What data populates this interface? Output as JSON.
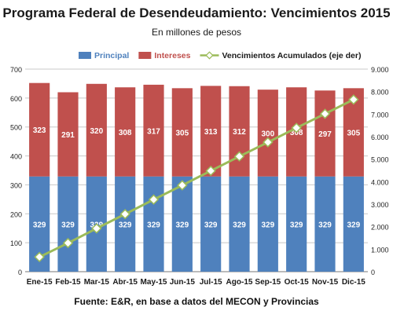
{
  "chart_data": {
    "type": "bar",
    "title": "Programa Federal de Desendeudamiento: Vencimientos 2015",
    "subtitle": "En millones de pesos",
    "source": "Fuente: E&R, en base a datos del MECON y Provincias",
    "categories": [
      "Ene-15",
      "Feb-15",
      "Mar-15",
      "Abr-15",
      "May-15",
      "Jun-15",
      "Jul-15",
      "Ago-15",
      "Sep-15",
      "Oct-15",
      "Nov-15",
      "Dic-15"
    ],
    "series": [
      {
        "name": "Principal",
        "type": "bar",
        "stack": "total",
        "axis": "left",
        "color": "#4F81BD",
        "values": [
          329,
          329,
          329,
          329,
          329,
          329,
          329,
          329,
          329,
          329,
          329,
          329
        ]
      },
      {
        "name": "Intereses",
        "type": "bar",
        "stack": "total",
        "axis": "left",
        "color": "#C0504D",
        "values": [
          323,
          291,
          320,
          308,
          317,
          305,
          313,
          312,
          300,
          308,
          297,
          305
        ]
      },
      {
        "name": "Vencimientos Acumulados (eje der)",
        "type": "line",
        "axis": "right",
        "color": "#9BBB59",
        "values": [
          652,
          1272,
          1921,
          2558,
          3204,
          3838,
          4480,
          5121,
          5750,
          6387,
          7013,
          7647
        ]
      }
    ],
    "y_left": {
      "min": 0,
      "max": 700,
      "ticks": [
        "0",
        "100",
        "200",
        "300",
        "400",
        "500",
        "600",
        "700"
      ]
    },
    "y_right": {
      "min": 0,
      "max": 9000,
      "ticks": [
        "0",
        "1.000",
        "2.000",
        "3.000",
        "4.000",
        "5.000",
        "6.000",
        "7.000",
        "8.000",
        "9.000"
      ]
    },
    "grid": true,
    "legend_position": "top"
  }
}
